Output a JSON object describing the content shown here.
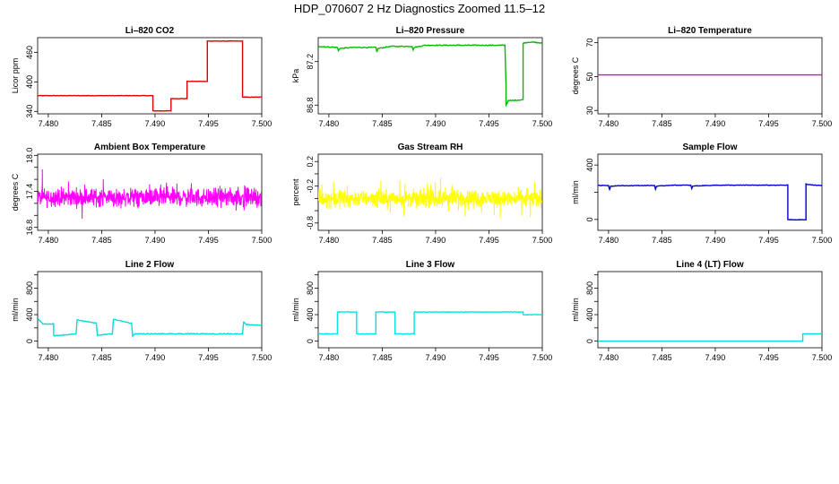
{
  "figure": {
    "title": "HDP_070607  2 Hz Diagnostics Zoomed 11.5–12"
  },
  "chart_data": [
    {
      "type": "line",
      "title": "Li–820 CO2",
      "ylabel": "Licor ppm",
      "xlim": [
        7.479,
        7.5
      ],
      "ylim": [
        335,
        490
      ],
      "xticks": [
        "7.480",
        "7.485",
        "7.490",
        "7.495",
        "7.500"
      ],
      "yticks": [
        "340",
        "400",
        "460"
      ],
      "ytick_values": [
        340,
        400,
        460
      ],
      "color": "#dd0000",
      "noise": 0.4,
      "series": [
        {
          "x": [
            7.479,
            7.4898,
            7.4898,
            7.4915,
            7.4915,
            7.493,
            7.493,
            7.4949,
            7.4949,
            7.4982,
            7.4982,
            7.5
          ],
          "y": [
            372,
            372,
            341,
            341,
            366,
            366,
            401,
            401,
            483,
            483,
            369,
            369
          ]
        }
      ]
    },
    {
      "type": "line",
      "title": "Li–820 Pressure",
      "ylabel": "kPa",
      "xlim": [
        7.479,
        7.5
      ],
      "ylim": [
        86.72,
        87.42
      ],
      "xticks": [
        "7.480",
        "7.485",
        "7.490",
        "7.495",
        "7.500"
      ],
      "yticks": [
        "86.8",
        "87.2"
      ],
      "yticks_extra": [
        "87.2"
      ],
      "ytick_values": [
        86.8,
        87.2
      ],
      "color": "#00bb00",
      "noise": 0.004,
      "series": [
        {
          "x": [
            7.479,
            7.4808,
            7.4809,
            7.481,
            7.4822,
            7.4844,
            7.4845,
            7.4846,
            7.4858,
            7.4878,
            7.4879,
            7.488,
            7.489,
            7.4965,
            7.4966,
            7.4966,
            7.4968,
            7.4982,
            7.4982,
            7.4988,
            7.5
          ],
          "y": [
            87.34,
            87.33,
            87.3,
            87.32,
            87.33,
            87.33,
            87.29,
            87.32,
            87.34,
            87.34,
            87.31,
            87.33,
            87.35,
            87.35,
            86.98,
            86.8,
            86.84,
            86.85,
            87.37,
            87.38,
            87.37
          ]
        }
      ]
    },
    {
      "type": "line",
      "title": "Li–820 Temperature",
      "ylabel": "degrees C",
      "xlim": [
        7.479,
        7.5
      ],
      "ylim": [
        28,
        73
      ],
      "xticks": [
        "7.480",
        "7.485",
        "7.490",
        "7.495",
        "7.500"
      ],
      "yticks": [
        "30",
        "50",
        "70"
      ],
      "ytick_values": [
        30,
        50,
        70
      ],
      "color": "#dd00dd",
      "noise": 0,
      "series": [
        {
          "x": [
            7.479,
            7.5
          ],
          "y": [
            51.0,
            51.0
          ]
        }
      ]
    },
    {
      "type": "line",
      "title": "Ambient Box Temperature",
      "ylabel": "degrees C",
      "xlim": [
        7.479,
        7.5
      ],
      "ylim": [
        16.75,
        18.02
      ],
      "xticks": [
        "7.480",
        "7.485",
        "7.490",
        "7.495",
        "7.500"
      ],
      "yticks": [
        "16.8",
        "17.4",
        "18.0"
      ],
      "yticks_extra": [
        "17.0",
        "17.2",
        "17.6",
        "17.8"
      ],
      "ytick_values": [
        16.8,
        17.0,
        17.2,
        17.4,
        17.6,
        17.8,
        18.0
      ],
      "color": "#ff00ff",
      "noise": 0.22,
      "dense": true,
      "series": [
        {
          "x": [
            7.479,
            7.5
          ],
          "y": [
            17.3,
            17.3
          ]
        }
      ]
    },
    {
      "type": "line",
      "title": "Gas Stream RH",
      "ylabel": "percent",
      "xlim": [
        7.479,
        7.5
      ],
      "ylim": [
        -0.92,
        0.32
      ],
      "xticks": [
        "7.480",
        "7.485",
        "7.490",
        "7.495",
        "7.500"
      ],
      "yticks": [
        "-0.8",
        "-0.2",
        "0.2"
      ],
      "yticks_extra": [
        "-0.4",
        "0.0"
      ],
      "ytick_values": [
        -0.8,
        -0.6,
        -0.4,
        -0.2,
        0.0,
        0.2
      ],
      "color": "#ffff00",
      "noise": 0.2,
      "dense": true,
      "series": [
        {
          "x": [
            7.479,
            7.5
          ],
          "y": [
            -0.4,
            -0.4
          ]
        }
      ]
    },
    {
      "type": "line",
      "title": "Sample Flow",
      "ylabel": "ml/min",
      "xlim": [
        7.479,
        7.5
      ],
      "ylim": [
        -80,
        480
      ],
      "xticks": [
        "7.480",
        "7.485",
        "7.490",
        "7.495",
        "7.500"
      ],
      "yticks": [
        "0",
        "400"
      ],
      "ytick_values": [
        0,
        200,
        400
      ],
      "color": "#0000cc",
      "noise": 2,
      "series": [
        {
          "x": [
            7.479,
            7.48,
            7.4801,
            7.4802,
            7.4808,
            7.4843,
            7.4844,
            7.4845,
            7.4858,
            7.4877,
            7.4878,
            7.4879,
            7.49,
            7.4968,
            7.4968,
            7.4969,
            7.4985,
            7.4985,
            7.4988,
            7.5
          ],
          "y": [
            250,
            250,
            220,
            245,
            248,
            250,
            225,
            244,
            252,
            252,
            228,
            246,
            252,
            252,
            0,
            -2,
            -2,
            260,
            255,
            250
          ]
        }
      ]
    },
    {
      "type": "line",
      "title": "Line 2 Flow",
      "ylabel": "ml/min",
      "xlim": [
        7.479,
        7.5
      ],
      "ylim": [
        -100,
        1050
      ],
      "xticks": [
        "7.480",
        "7.485",
        "7.490",
        "7.495",
        "7.500"
      ],
      "yticks": [
        "0",
        "400",
        "800"
      ],
      "ytick_values": [
        0,
        200,
        400,
        600,
        800,
        1000
      ],
      "color": "#00dddd",
      "noise": 6,
      "series": [
        {
          "x": [
            7.479,
            7.4795,
            7.4805,
            7.4805,
            7.4826,
            7.4827,
            7.4845,
            7.4846,
            7.486,
            7.4861,
            7.4878,
            7.4879,
            7.4881,
            7.4982,
            7.4983,
            7.4986,
            7.5
          ],
          "y": [
            340,
            260,
            260,
            80,
            110,
            320,
            270,
            90,
            110,
            330,
            270,
            80,
            110,
            110,
            290,
            250,
            240
          ]
        }
      ]
    },
    {
      "type": "line",
      "title": "Line 3 Flow",
      "ylabel": "ml/min",
      "xlim": [
        7.479,
        7.5
      ],
      "ylim": [
        -100,
        1050
      ],
      "xticks": [
        "7.480",
        "7.485",
        "7.490",
        "7.495",
        "7.500"
      ],
      "yticks": [
        "0",
        "400",
        "800"
      ],
      "ytick_values": [
        0,
        200,
        400,
        600,
        800,
        1000
      ],
      "color": "#00e5e5",
      "noise": 3,
      "series": [
        {
          "x": [
            7.479,
            7.4808,
            7.4808,
            7.4826,
            7.4826,
            7.4844,
            7.4844,
            7.4862,
            7.4862,
            7.488,
            7.488,
            7.4982,
            7.4982,
            7.5
          ],
          "y": [
            110,
            110,
            440,
            440,
            110,
            110,
            440,
            440,
            110,
            110,
            440,
            440,
            400,
            400
          ]
        }
      ]
    },
    {
      "type": "line",
      "title": "Line 4 (LT) Flow",
      "ylabel": "ml/min",
      "xlim": [
        7.479,
        7.5
      ],
      "ylim": [
        -100,
        1050
      ],
      "xticks": [
        "7.480",
        "7.485",
        "7.490",
        "7.495",
        "7.500"
      ],
      "yticks": [
        "0",
        "400",
        "800"
      ],
      "ytick_values": [
        0,
        200,
        400,
        600,
        800,
        1000
      ],
      "color": "#00dddd",
      "noise": 0,
      "series": [
        {
          "x": [
            7.479,
            7.4982,
            7.4982,
            7.5
          ],
          "y": [
            0,
            0,
            110,
            110
          ]
        }
      ]
    }
  ]
}
